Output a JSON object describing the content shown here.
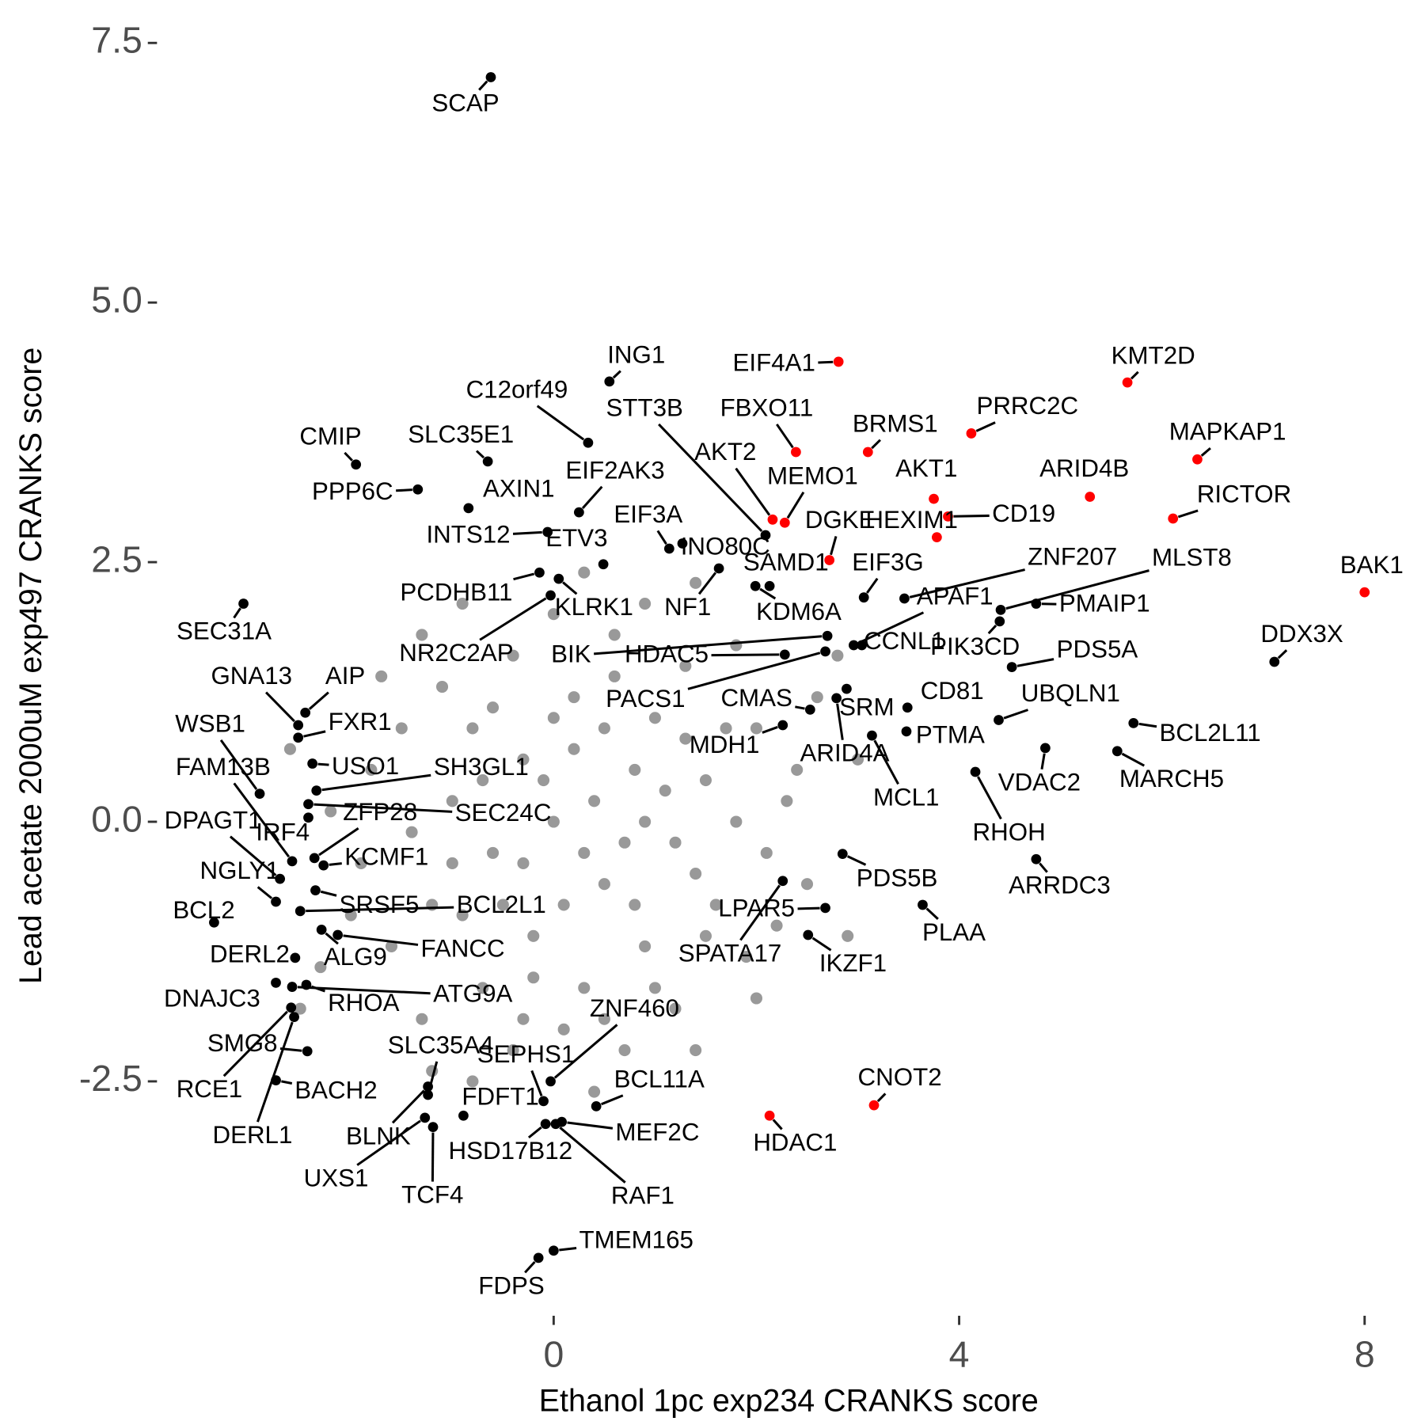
{
  "chart_data": {
    "type": "scatter",
    "x_label": "Ethanol 1pc exp234 CRANKS score",
    "y_label": "Lead acetate 2000uM exp497 CRANKS score",
    "xlim": [
      -4,
      8.4
    ],
    "ylim": [
      -4.75,
      7.75
    ],
    "xticks": [
      0,
      4,
      8
    ],
    "yticks": [
      -2.5,
      {
        "value": 0,
        "label": "0.0"
      },
      2.5,
      {
        "value": 5,
        "label": "5.0"
      },
      7.5
    ],
    "grid": false,
    "groups": [
      {
        "color": "#999999",
        "points": [
          {
            "x": 0.4,
            "y": 0.2
          },
          {
            "x": 0,
            "y": 0
          },
          {
            "x": 0.8,
            "y": 0.5
          },
          {
            "x": -0.3,
            "y": 0.6
          },
          {
            "x": 1.2,
            "y": -0.2
          },
          {
            "x": 0.5,
            "y": -0.6
          },
          {
            "x": -0.6,
            "y": -0.3
          },
          {
            "x": 1.0,
            "y": 1.0
          },
          {
            "x": 0.2,
            "y": 1.2
          },
          {
            "x": -0.8,
            "y": 0.9
          },
          {
            "x": 1.5,
            "y": 0.4
          },
          {
            "x": 1.6,
            "y": -0.8
          },
          {
            "x": 0.9,
            "y": -1.2
          },
          {
            "x": -0.2,
            "y": -1.1
          },
          {
            "x": -1.0,
            "y": 0.2
          },
          {
            "x": -1.2,
            "y": -0.8
          },
          {
            "x": 0.3,
            "y": -1.6
          },
          {
            "x": 1.3,
            "y": 1.5
          },
          {
            "x": 0.6,
            "y": 1.8
          },
          {
            "x": -0.4,
            "y": 1.6
          },
          {
            "x": -1.1,
            "y": 1.3
          },
          {
            "x": 2.0,
            "y": 0.9
          },
          {
            "x": 2.1,
            "y": -0.3
          },
          {
            "x": 1.9,
            "y": -1.3
          },
          {
            "x": 1.2,
            "y": -1.8
          },
          {
            "x": 0.1,
            "y": -2.0
          },
          {
            "x": -0.7,
            "y": -1.6
          },
          {
            "x": -1.4,
            "y": -0.1
          },
          {
            "x": -1.5,
            "y": 0.9
          },
          {
            "x": 0.0,
            "y": 2.0
          },
          {
            "x": 0.9,
            "y": 2.1
          },
          {
            "x": 1.8,
            "y": 1.7
          },
          {
            "x": 2.3,
            "y": 0.2
          },
          {
            "x": 2.2,
            "y": -1.0
          },
          {
            "x": -1.6,
            "y": -1.2
          },
          {
            "x": -1.3,
            "y": 1.8
          },
          {
            "x": 0.5,
            "y": 0.9
          },
          {
            "x": 0.7,
            "y": -0.2
          },
          {
            "x": -0.1,
            "y": 0.4
          },
          {
            "x": 0.3,
            "y": -0.3
          },
          {
            "x": 1.1,
            "y": 0.3
          },
          {
            "x": -0.5,
            "y": -0.8
          },
          {
            "x": 0.2,
            "y": 0.7
          },
          {
            "x": 1.4,
            "y": -0.5
          },
          {
            "x": 0.8,
            "y": -0.8
          },
          {
            "x": -0.9,
            "y": -0.9
          },
          {
            "x": -0.3,
            "y": -0.4
          },
          {
            "x": 1.7,
            "y": 0.9
          },
          {
            "x": -0.7,
            "y": 0.4
          },
          {
            "x": 0.6,
            "y": 1.4
          },
          {
            "x": 1.0,
            "y": -1.6
          },
          {
            "x": -0.2,
            "y": -1.5
          },
          {
            "x": 2.4,
            "y": 0.5
          },
          {
            "x": -1.8,
            "y": 0.5
          },
          {
            "x": -1.9,
            "y": -0.4
          },
          {
            "x": -1.7,
            "y": 1.4
          },
          {
            "x": -2.0,
            "y": -0.9
          },
          {
            "x": -0.9,
            "y": 2.1
          },
          {
            "x": 0.3,
            "y": 2.4
          },
          {
            "x": 1.4,
            "y": 2.3
          },
          {
            "x": 2.6,
            "y": 1.2
          },
          {
            "x": 2.5,
            "y": -0.6
          },
          {
            "x": 2.0,
            "y": -1.7
          },
          {
            "x": 0.7,
            "y": -2.2
          },
          {
            "x": -0.4,
            "y": -2.2
          },
          {
            "x": -1.3,
            "y": -1.9
          },
          {
            "x": -2.2,
            "y": 0.1
          },
          {
            "x": -2.3,
            "y": -1.4
          },
          {
            "x": 1.5,
            "y": -1.1
          },
          {
            "x": 0.1,
            "y": -0.8
          },
          {
            "x": -0.6,
            "y": 1.1
          },
          {
            "x": 1.3,
            "y": 0.8
          },
          {
            "x": 0.0,
            "y": 1.0
          },
          {
            "x": 0.9,
            "y": 0.0
          },
          {
            "x": -1.0,
            "y": -0.4
          },
          {
            "x": 1.8,
            "y": 0.0
          },
          {
            "x": -0.3,
            "y": -1.9
          },
          {
            "x": 0.5,
            "y": -1.9
          },
          {
            "x": 2.8,
            "y": 1.6
          },
          {
            "x": -2.6,
            "y": 0.7
          },
          {
            "x": -1.2,
            "y": -2.4
          },
          {
            "x": 0.4,
            "y": -2.6
          },
          {
            "x": 1.4,
            "y": -2.2
          },
          {
            "x": 3.0,
            "y": 0.6
          },
          {
            "x": 2.9,
            "y": -1.1
          },
          {
            "x": -2.5,
            "y": -1.8
          },
          {
            "x": -0.8,
            "y": -2.5
          }
        ]
      },
      {
        "color": "#000000",
        "points": [
          {
            "label": "SCAP",
            "x": -0.62,
            "y": 7.17
          },
          {
            "label": "ING1",
            "x": 0.55,
            "y": 4.24
          },
          {
            "label": "C12orf49",
            "x": 0.34,
            "y": 3.65
          },
          {
            "label": "STT3B",
            "x": 2.09,
            "y": 2.76
          },
          {
            "label": "CMIP",
            "x": -1.95,
            "y": 3.44
          },
          {
            "label": "SLC35E1",
            "x": -0.65,
            "y": 3.47
          },
          {
            "label": "PPP6C",
            "x": -1.34,
            "y": 3.2
          },
          {
            "label": "AXIN1",
            "x": -0.84,
            "y": 3.02
          },
          {
            "label": "EIF2AK3",
            "x": 0.25,
            "y": 2.98
          },
          {
            "label": "INTS12",
            "x": -0.06,
            "y": 2.79
          },
          {
            "label": "ETV3",
            "x": 0.49,
            "y": 2.48
          },
          {
            "label": "EIF3A",
            "x": 1.14,
            "y": 2.63
          },
          {
            "label": "INO80C",
            "x": 1.27,
            "y": 2.68
          },
          {
            "label": "SAMD1",
            "x": 2.13,
            "y": 2.27
          },
          {
            "label": "KDM6A",
            "x": 1.99,
            "y": 2.27
          },
          {
            "label": "EIF3G",
            "x": 3.06,
            "y": 2.16
          },
          {
            "label": "NF1",
            "x": 1.63,
            "y": 2.44
          },
          {
            "label": "KLRK1",
            "x": 0.05,
            "y": 2.34
          },
          {
            "label": "PCDHB11",
            "x": -0.14,
            "y": 2.4
          },
          {
            "label": "NR2C2AP",
            "x": -0.03,
            "y": 2.18
          },
          {
            "label": "ZNF207",
            "x": 3.46,
            "y": 2.15
          },
          {
            "label": "APAF1",
            "x": 2.96,
            "y": 1.7
          },
          {
            "label": "CCNL1",
            "x": 3.04,
            "y": 1.7
          },
          {
            "label": "MLST8",
            "x": 4.41,
            "y": 2.04
          },
          {
            "label": "PMAIP1",
            "x": 4.76,
            "y": 2.1
          },
          {
            "label": "PIK3CD",
            "x": 4.4,
            "y": 1.93
          },
          {
            "label": "PDS5A",
            "x": 4.52,
            "y": 1.49
          },
          {
            "label": "DDX3X",
            "x": 7.11,
            "y": 1.54
          },
          {
            "label": "UBQLN1",
            "x": 4.39,
            "y": 0.98
          },
          {
            "label": "BCL2L11",
            "x": 5.72,
            "y": 0.95
          },
          {
            "label": "MARCH5",
            "x": 5.56,
            "y": 0.68
          },
          {
            "label": "VDAC2",
            "x": 4.85,
            "y": 0.71
          },
          {
            "label": "RHOH",
            "x": 4.16,
            "y": 0.48
          },
          {
            "label": "ARRDC3",
            "x": 4.76,
            "y": -0.36
          },
          {
            "label": "CD81",
            "x": 3.49,
            "y": 1.1
          },
          {
            "label": "PTMA",
            "x": 3.48,
            "y": 0.87
          },
          {
            "label": "MCL1",
            "x": 3.14,
            "y": 0.83
          },
          {
            "label": "SRM",
            "x": 2.89,
            "y": 1.28
          },
          {
            "label": "ARID4A",
            "x": 2.79,
            "y": 1.19
          },
          {
            "label": "BIK",
            "x": 2.7,
            "y": 1.79
          },
          {
            "label": "HDAC5",
            "x": 2.28,
            "y": 1.61
          },
          {
            "label": "PACS1",
            "x": 2.68,
            "y": 1.64
          },
          {
            "label": "CMAS",
            "x": 2.53,
            "y": 1.08
          },
          {
            "label": "MDH1",
            "x": 2.26,
            "y": 0.93
          },
          {
            "label": "IKZF1",
            "x": 2.51,
            "y": -1.09
          },
          {
            "label": "LPAR5",
            "x": 2.68,
            "y": -0.83
          },
          {
            "label": "PDS5B",
            "x": 2.85,
            "y": -0.31
          },
          {
            "label": "PLAA",
            "x": 3.64,
            "y": -0.8
          },
          {
            "label": "SPATA17",
            "x": 2.26,
            "y": -0.57
          },
          {
            "label": "BCL11A",
            "x": 0.42,
            "y": -2.74
          },
          {
            "label": "MEF2C",
            "x": 0.08,
            "y": -2.89
          },
          {
            "label": "RAF1",
            "x": 0.02,
            "y": -2.91
          },
          {
            "label": "ZNF460",
            "x": -0.03,
            "y": -2.5
          },
          {
            "label": "SEPHS1",
            "x": -0.1,
            "y": -2.69
          },
          {
            "label": "FDFT1",
            "x": -0.89,
            "y": -2.83
          },
          {
            "label": "HSD17B12",
            "x": -0.08,
            "y": -2.91
          },
          {
            "label": "TCF4",
            "x": -1.19,
            "y": -2.94
          },
          {
            "label": "UXS1",
            "x": -1.27,
            "y": -2.85
          },
          {
            "label": "BLNK",
            "x": -1.24,
            "y": -2.55
          },
          {
            "label": "SLC35A4",
            "x": -1.24,
            "y": -2.63
          },
          {
            "label": "TMEM165",
            "x": 0.0,
            "y": -4.13
          },
          {
            "label": "FDPS",
            "x": -0.15,
            "y": -4.2
          },
          {
            "label": "SEC31A",
            "x": -3.06,
            "y": 2.1
          },
          {
            "label": "GNA13",
            "x": -2.52,
            "y": 0.93
          },
          {
            "label": "AIP",
            "x": -2.45,
            "y": 1.05
          },
          {
            "label": "WSB1",
            "x": -2.9,
            "y": 0.27
          },
          {
            "label": "FXR1",
            "x": -2.52,
            "y": 0.81
          },
          {
            "label": "FAM13B",
            "x": -2.58,
            "y": -0.38
          },
          {
            "label": "USO1",
            "x": -2.38,
            "y": 0.56
          },
          {
            "label": "SH3GL1",
            "x": -2.34,
            "y": 0.3
          },
          {
            "label": "DPAGT1",
            "x": -2.7,
            "y": -0.55
          },
          {
            "label": "IRF4",
            "x": -2.42,
            "y": 0.04
          },
          {
            "label": "ZFP28",
            "x": -2.36,
            "y": -0.35
          },
          {
            "label": "KCMF1",
            "x": -2.27,
            "y": -0.42
          },
          {
            "label": "SEC24C",
            "x": -2.42,
            "y": 0.17
          },
          {
            "label": "NGLY1",
            "x": -2.74,
            "y": -0.77
          },
          {
            "label": "BCL2",
            "x": -3.35,
            "y": -0.97
          },
          {
            "label": "SRSF5",
            "x": -2.35,
            "y": -0.66
          },
          {
            "label": "BCL2L1",
            "x": -2.5,
            "y": -0.86
          },
          {
            "label": "DERL2",
            "x": -2.55,
            "y": -1.31
          },
          {
            "label": "ALG9",
            "x": -2.29,
            "y": -1.04
          },
          {
            "label": "FANCC",
            "x": -2.13,
            "y": -1.09
          },
          {
            "label": "DNAJC3",
            "x": -2.74,
            "y": -1.55
          },
          {
            "label": "RHOA",
            "x": -2.44,
            "y": -1.57
          },
          {
            "label": "ATG9A",
            "x": -2.58,
            "y": -1.59
          },
          {
            "label": "SMG8",
            "x": -2.43,
            "y": -2.21
          },
          {
            "label": "RCE1",
            "x": -2.59,
            "y": -1.79
          },
          {
            "label": "BACH2",
            "x": -2.74,
            "y": -2.49
          },
          {
            "label": "DERL1",
            "x": -2.56,
            "y": -1.88
          }
        ]
      },
      {
        "color": "#ff0000",
        "points": [
          {
            "label": "EIF4A1",
            "x": 2.81,
            "y": 4.43
          },
          {
            "label": "FBXO11",
            "x": 2.39,
            "y": 3.56
          },
          {
            "label": "AKT2",
            "x": 2.16,
            "y": 2.91
          },
          {
            "label": "MEMO1",
            "x": 2.28,
            "y": 2.88
          },
          {
            "label": "BRMS1",
            "x": 3.1,
            "y": 3.56
          },
          {
            "label": "PRRC2C",
            "x": 4.12,
            "y": 3.74
          },
          {
            "label": "KMT2D",
            "x": 5.66,
            "y": 4.23
          },
          {
            "label": "MAPKAP1",
            "x": 6.35,
            "y": 3.49
          },
          {
            "label": "AKT1",
            "x": 3.75,
            "y": 3.11
          },
          {
            "label": "ARID4B",
            "x": 5.29,
            "y": 3.13
          },
          {
            "label": "RICTOR",
            "x": 6.11,
            "y": 2.92
          },
          {
            "label": "CD19",
            "x": 3.89,
            "y": 2.94
          },
          {
            "label": "HEXIM1",
            "x": 3.78,
            "y": 2.74
          },
          {
            "label": "DGKE",
            "x": 2.72,
            "y": 2.52
          },
          {
            "label": "BAK1",
            "x": 8.0,
            "y": 2.21
          },
          {
            "label": "CNOT2",
            "x": 3.16,
            "y": -2.73
          },
          {
            "label": "HDAC1",
            "x": 2.13,
            "y": -2.83
          }
        ]
      }
    ]
  }
}
